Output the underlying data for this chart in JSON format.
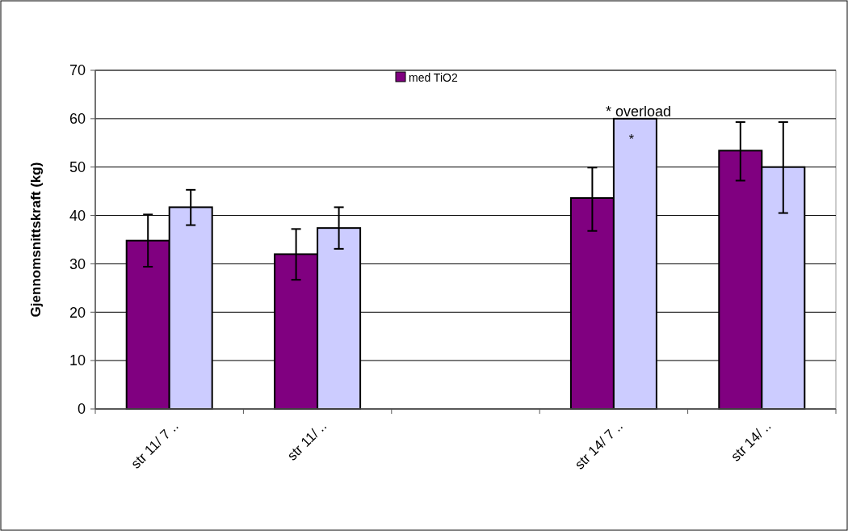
{
  "chart_data": {
    "type": "bar",
    "ylabel": "Gjennomsnittskraft (kg)",
    "categories": [
      "str 11/ 7 ..",
      "str 11/ ..",
      null,
      "str 14/ 7 ..",
      "str 14/ .."
    ],
    "series": [
      {
        "name": "med TiO2",
        "color": "#800080",
        "values": [
          34.8,
          32.0,
          null,
          43.6,
          53.4
        ],
        "errors": [
          [
            29.4,
            40.2
          ],
          [
            26.7,
            37.2
          ],
          null,
          [
            36.8,
            49.9
          ],
          [
            47.2,
            59.3
          ]
        ]
      },
      {
        "color": "#ccccff",
        "values": [
          41.7,
          37.4,
          null,
          60.0,
          50.0
        ],
        "errors": [
          [
            38.0,
            45.3
          ],
          [
            33.1,
            41.7
          ],
          null,
          null,
          [
            40.5,
            59.3
          ]
        ]
      }
    ],
    "ylim": [
      0,
      70
    ],
    "yticks": [
      0,
      10,
      20,
      30,
      40,
      50,
      60,
      70
    ],
    "grid": "y",
    "legend": "top",
    "annotations": [
      {
        "text": "* overload",
        "x": "str 14/ 7 ..",
        "y": 60
      },
      {
        "text": "*",
        "x": "str 14/ 7 ..",
        "y": 60
      }
    ]
  }
}
